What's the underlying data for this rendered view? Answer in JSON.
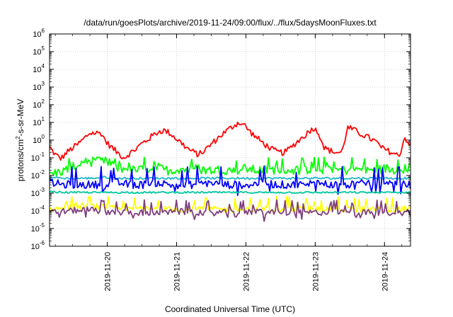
{
  "chart_data": {
    "type": "line",
    "title": "/data/run/goesPlots/archive/2019-11-24/09:00/flux/../flux/5daysMoonFluxes.txt",
    "xlabel": "Coordinated Universal Time (UTC)",
    "ylabel_parts": [
      "protons/cm",
      "2",
      "-s-sr-MeV"
    ],
    "y_scale": "log",
    "ylim": [
      1e-06,
      1000000.0
    ],
    "y_ticks": [
      {
        "base": "10",
        "exp": "-6"
      },
      {
        "base": "10",
        "exp": "-5"
      },
      {
        "base": "10",
        "exp": "-4"
      },
      {
        "base": "10",
        "exp": "-3"
      },
      {
        "base": "10",
        "exp": "-2"
      },
      {
        "base": "10",
        "exp": "-1"
      },
      {
        "base": "10",
        "exp": "0"
      },
      {
        "base": "10",
        "exp": "1"
      },
      {
        "base": "10",
        "exp": "2"
      },
      {
        "base": "10",
        "exp": "3"
      },
      {
        "base": "10",
        "exp": "4"
      },
      {
        "base": "10",
        "exp": "5"
      },
      {
        "base": "10",
        "exp": "6"
      }
    ],
    "xlim": [
      "2019-11-19T04:00",
      "2019-11-24T09:00"
    ],
    "x_ticks": [
      "2019-11-20",
      "2019-11-21",
      "2019-11-22",
      "2019-11-23",
      "2019-11-24"
    ],
    "grid": true,
    "legend": "none",
    "series": [
      {
        "color": "#ff0000",
        "base": [
          0.4,
          0.15,
          0.09,
          0.2,
          0.35,
          0.6,
          1.2,
          2.5,
          2.5,
          2.5,
          0.7,
          0.35,
          0.18,
          0.1,
          0.18,
          0.3,
          0.6,
          1.0,
          1.8,
          3.0,
          3.5,
          2.5,
          1.3,
          0.7,
          0.35,
          0.22,
          0.15,
          0.25,
          0.5,
          1.0,
          2.0,
          3.5,
          6.0,
          10,
          7,
          3,
          1.5,
          0.8,
          0.45,
          0.28,
          0.2,
          0.2,
          0.35,
          0.7,
          1.3,
          2.5,
          5,
          2.5,
          0.35,
          0.25,
          0.2,
          0.2,
          5,
          4,
          2.5,
          1.8,
          1.2,
          0.8,
          0.35,
          0.25,
          0.18,
          0.12,
          1.5,
          0.45
        ],
        "jitter": 0.35,
        "pts": 260
      },
      {
        "color": "#00ff00",
        "base": [
          0.012,
          0.015,
          0.02,
          0.03,
          0.06,
          0.06,
          0.06,
          0.06,
          0.03,
          0.025,
          0.02,
          0.02,
          0.025,
          0.03,
          0.02,
          0.02,
          0.025,
          0.02,
          0.025,
          0.02,
          0.02,
          0.022,
          0.02,
          0.02,
          0.025,
          0.02,
          0.02,
          0.02,
          0.025,
          0.02,
          0.02,
          0.02,
          0.025,
          0.02,
          0.03,
          0.02,
          0.02,
          0.025,
          0.02,
          0.02,
          0.02,
          0.025,
          0.02,
          0.02,
          0.03
        ],
        "jitter": 0.55,
        "spikeUp": 0.08,
        "pts": 260
      },
      {
        "color": "#1fb7c8",
        "base": [
          0.008,
          0.007,
          0.007,
          0.007,
          0.008,
          0.007,
          0.007,
          0.007,
          0.007,
          0.007,
          0.007,
          0.007,
          0.007,
          0.007,
          0.007,
          0.007,
          0.007,
          0.007,
          0.007,
          0.007,
          0.007,
          0.007,
          0.007,
          0.007,
          0.007,
          0.007,
          0.007
        ],
        "jitter": 0.12,
        "pts": 260
      },
      {
        "color": "#0000ff",
        "base": [
          0.004,
          0.003,
          0.003,
          0.003,
          0.003,
          0.004,
          0.003,
          0.003,
          0.004,
          0.003,
          0.003,
          0.003,
          0.004,
          0.003,
          0.003,
          0.003,
          0.004,
          0.003,
          0.003,
          0.003,
          0.004,
          0.003,
          0.003,
          0.003,
          0.004,
          0.003,
          0.003,
          0.003
        ],
        "jitter": 0.45,
        "spikeUp": 0.025,
        "spikeDown": 0.0012,
        "pts": 260
      },
      {
        "color": "#00c8a0",
        "base": [
          0.0012,
          0.0011,
          0.0011,
          0.0011,
          0.0011,
          0.0011,
          0.0011,
          0.0011,
          0.0011,
          0.0011,
          0.0011,
          0.0011,
          0.0011,
          0.0011,
          0.0011,
          0.0011,
          0.0011,
          0.0011,
          0.0011,
          0.0011
        ],
        "jitter": 0.1,
        "pts": 260
      },
      {
        "color": "#ffff00",
        "base": [
          0.00012,
          0.00015,
          0.0002,
          0.00015,
          0.00012,
          0.00013,
          0.00012,
          0.00012,
          0.00013,
          0.00012,
          0.00012,
          0.00013,
          0.00012,
          0.00012,
          0.00013,
          0.00012,
          0.00012,
          0.00013,
          0.00012,
          0.00014
        ],
        "jitter": 0.35,
        "spikeUp": 0.0005,
        "pts": 260
      },
      {
        "color": "#7f3f7f",
        "base": [
          8e-05,
          0.0001,
          0.00012,
          9e-05,
          8e-05,
          8e-05,
          8e-05,
          9e-05,
          8e-05,
          8e-05,
          8e-05,
          9e-05,
          8e-05,
          8e-05,
          8e-05,
          9e-05,
          8e-05,
          8e-05,
          8e-05,
          9e-05
        ],
        "jitter": 0.35,
        "spikeUp": 0.0003,
        "spikeDown": 4e-05,
        "pts": 260
      }
    ]
  }
}
